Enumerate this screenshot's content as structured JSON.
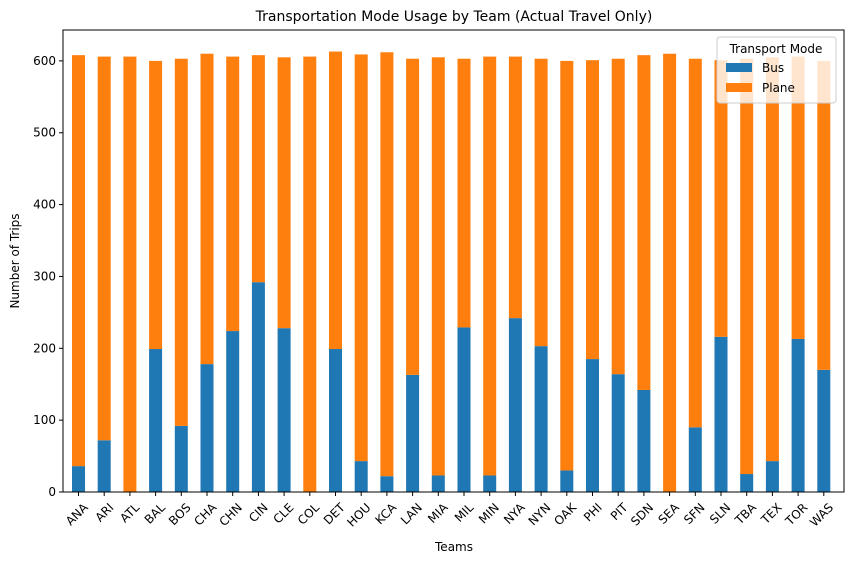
{
  "chart_data": {
    "type": "bar",
    "stacked": true,
    "title": "Transportation Mode Usage by Team (Actual Travel Only)",
    "xlabel": "Teams",
    "ylabel": "Number of Trips",
    "ylim": [
      0,
      643
    ],
    "yticks": [
      0,
      100,
      200,
      300,
      400,
      500,
      600
    ],
    "grid": false,
    "legend": {
      "title": "Transport Mode",
      "placement": "top-right"
    },
    "categories": [
      "ANA",
      "ARI",
      "ATL",
      "BAL",
      "BOS",
      "CHA",
      "CHN",
      "CIN",
      "CLE",
      "COL",
      "DET",
      "HOU",
      "KCA",
      "LAN",
      "MIA",
      "MIL",
      "MIN",
      "NYA",
      "NYN",
      "OAK",
      "PHI",
      "PIT",
      "SDN",
      "SEA",
      "SFN",
      "SLN",
      "TBA",
      "TEX",
      "TOR",
      "WAS"
    ],
    "series": [
      {
        "name": "Bus",
        "color": "#1f77b4",
        "values": [
          36,
          72,
          0,
          199,
          92,
          178,
          224,
          292,
          228,
          0,
          199,
          43,
          22,
          163,
          23,
          229,
          23,
          242,
          203,
          30,
          185,
          164,
          142,
          0,
          90,
          216,
          25,
          43,
          213,
          170
        ]
      },
      {
        "name": "Plane",
        "color": "#ff7f0e",
        "values": [
          572,
          534,
          606,
          401,
          511,
          432,
          382,
          316,
          377,
          606,
          414,
          566,
          590,
          440,
          582,
          374,
          583,
          364,
          400,
          570,
          416,
          439,
          466,
          610,
          513,
          385,
          578,
          562,
          393,
          430
        ]
      }
    ]
  }
}
